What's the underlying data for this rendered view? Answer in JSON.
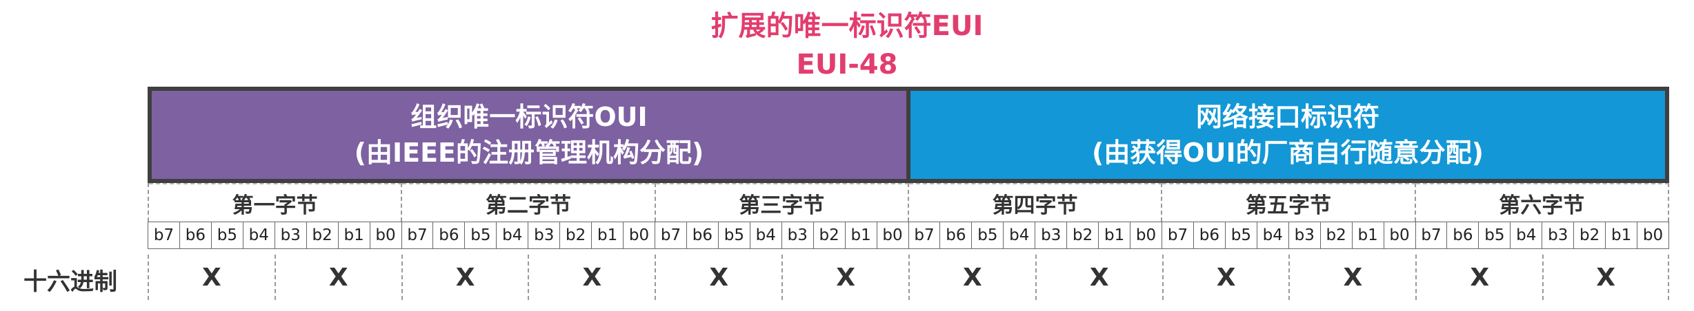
{
  "title": {
    "line1": "扩展的唯一标识符EUI",
    "line2": "EUI-48"
  },
  "fields": [
    {
      "name": "组织唯一标识符OUI",
      "note": "(由IEEE的注册管理机构分配)",
      "color": "#7d61a1"
    },
    {
      "name": "网络接口标识符",
      "note": "(由获得OUI的厂商自行随意分配)",
      "color": "#1397d6"
    }
  ],
  "bytes": [
    "第一字节",
    "第二字节",
    "第三字节",
    "第四字节",
    "第五字节",
    "第六字节"
  ],
  "bits": [
    "b7",
    "b6",
    "b5",
    "b4",
    "b3",
    "b2",
    "b1",
    "b0"
  ],
  "hex": {
    "label": "十六进制",
    "digits": [
      "X",
      "X",
      "X",
      "X",
      "X",
      "X",
      "X",
      "X",
      "X",
      "X",
      "X",
      "X"
    ]
  },
  "colors": {
    "title": "#e23d6f",
    "border": "#3f3f3f"
  }
}
